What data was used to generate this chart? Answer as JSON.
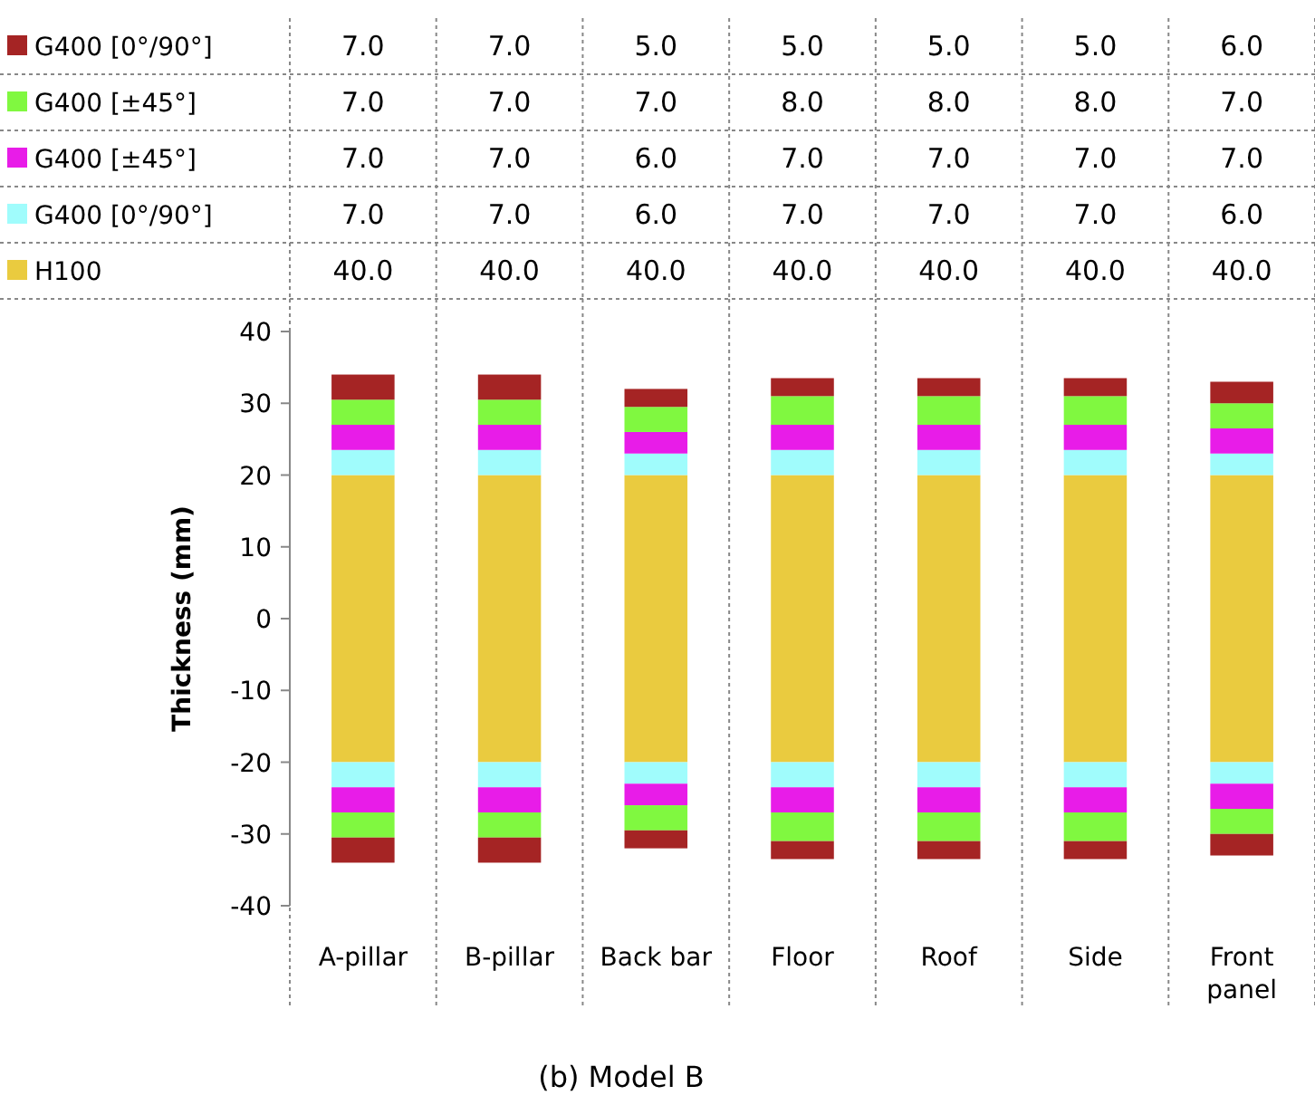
{
  "chart_data": [
    {
      "type": "other",
      "categories": [
        null,
        null,
        null,
        null,
        null,
        null,
        null
      ],
      "annotations": [
        "7.0",
        "7.0",
        "5.0",
        "5.0",
        "5.0",
        "5.0",
        "6.0",
        "7.0",
        "7.0",
        "7.0",
        "8.0",
        "8.0",
        "8.0",
        "7.0",
        "7.0",
        "7.0",
        "6.0",
        "7.0",
        "7.0",
        "7.0",
        "7.0",
        "7.0",
        "7.0",
        "6.0",
        "7.0",
        "7.0",
        "7.0",
        "6.0",
        "40.0",
        "40.0",
        "40.0",
        "40.0",
        "40.0",
        "40.0",
        "40.0"
      ]
    },
    {
      "type": "bar",
      "stacked": true,
      "categories": [
        "A-pillar",
        "B-pillar",
        "Back bar",
        "Floor",
        "Roof",
        "Side",
        "Front panel"
      ],
      "series": [
        {
          "name": "H100",
          "color": "#eacb3f",
          "values": [
            20,
            20,
            20,
            20,
            20,
            20,
            20
          ]
        },
        {
          "color": "#eacb3f",
          "values": [
            -20,
            -20,
            -20,
            -20,
            -20,
            -20,
            -20
          ]
        },
        {
          "name": "G400 [0°/90°]",
          "color": "#a0fcfc",
          "values": [
            3.5,
            3.5,
            3,
            3.5,
            3.5,
            3.5,
            3
          ]
        },
        {
          "color": "#a0fcfc",
          "values": [
            -3.5,
            -3.5,
            -3,
            -3.5,
            -3.5,
            -3.5,
            -3
          ]
        },
        {
          "name": "G400 [±45°]",
          "color": "#e81ce8",
          "values": [
            3.5,
            3.5,
            3,
            3.5,
            3.5,
            3.5,
            3.5
          ]
        },
        {
          "color": "#e81ce8",
          "values": [
            -3.5,
            -3.5,
            -3,
            -3.5,
            -3.5,
            -3.5,
            -3.5
          ]
        },
        {
          "name": "G400 [±45°]",
          "color": "#80f840",
          "values": [
            3.5,
            3.5,
            3.5,
            4,
            4,
            4,
            3.5
          ]
        },
        {
          "color": "#80f840",
          "values": [
            -3.5,
            -3.5,
            -3.5,
            -4,
            -4,
            -4,
            -3.5
          ]
        },
        {
          "name": "G400 [0°/90°]",
          "color": "#a52424",
          "values": [
            3.5,
            3.5,
            2.5,
            2.5,
            2.5,
            2.5,
            3
          ]
        },
        {
          "color": "#a52424",
          "values": [
            -3.5,
            -3.5,
            -2.5,
            -2.5,
            -2.5,
            -2.5,
            -3
          ]
        }
      ],
      "ylabel": "Thickness (mm)",
      "ylim": [
        -40,
        40
      ],
      "yticks": [
        -40,
        -30,
        -20,
        -10,
        0,
        10,
        20,
        30,
        40
      ],
      "legend": "top left",
      "grid": "x",
      "annotations": [
        "(b) Model B"
      ]
    }
  ]
}
